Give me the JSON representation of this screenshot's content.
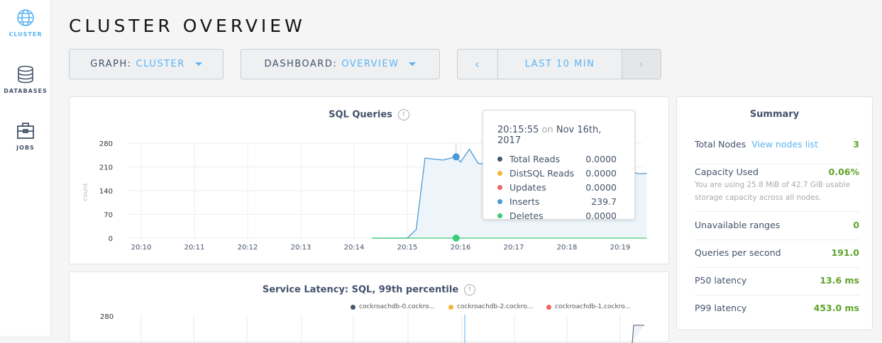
{
  "sidebar": {
    "items": [
      {
        "label": "CLUSTER",
        "icon": "globe-icon",
        "active": true
      },
      {
        "label": "DATABASES",
        "icon": "database-icon"
      },
      {
        "label": "JOBS",
        "icon": "briefcase-icon"
      }
    ]
  },
  "page_title": "CLUSTER OVERVIEW",
  "controls": {
    "graph_label": "GRAPH:",
    "graph_value": "CLUSTER",
    "dashboard_label": "DASHBOARD:",
    "dashboard_value": "OVERVIEW",
    "time_range": "LAST 10 MIN"
  },
  "sql_chart": {
    "title": "SQL Queries",
    "ylabel": "count",
    "yticks": [
      "280",
      "210",
      "140",
      "70",
      "0"
    ],
    "xticks": [
      "20:10",
      "20:11",
      "20:12",
      "20:13",
      "20:14",
      "20:15",
      "20:16",
      "20:17",
      "20:18",
      "20:19"
    ]
  },
  "chart_data": [
    {
      "type": "area",
      "title": "SQL Queries",
      "ylabel": "count",
      "ylim": [
        0,
        280
      ],
      "x": [
        "20:14:20",
        "20:14:40",
        "20:15:00",
        "20:15:10",
        "20:15:20",
        "20:15:40",
        "20:15:55",
        "20:16:00",
        "20:16:10",
        "20:16:20",
        "20:16:40",
        "20:17:00",
        "20:17:20",
        "20:17:40",
        "20:18:00",
        "20:18:20",
        "20:18:40",
        "20:19:00",
        "20:19:10",
        "20:19:20",
        "20:19:30"
      ],
      "series": [
        {
          "name": "Inserts",
          "color": "#4b9bd6",
          "values": [
            0,
            0,
            0,
            25,
            236,
            230,
            239.7,
            224,
            262,
            220,
            215,
            225,
            220,
            230,
            225,
            230,
            235,
            250,
            200,
            190,
            191
          ]
        },
        {
          "name": "Deletes",
          "color": "#3dcc78",
          "values": [
            0,
            0,
            0,
            0,
            0,
            0,
            0,
            0,
            0,
            0,
            0,
            0,
            0,
            0,
            0,
            0,
            0,
            0,
            0,
            0,
            0
          ]
        }
      ]
    },
    {
      "type": "line",
      "title": "Service Latency: SQL, 99th percentile",
      "yticks": [
        "280"
      ],
      "series": [
        {
          "name": "cockroachdb-0.cockro...",
          "color": "#475872"
        },
        {
          "name": "cockroachdb-2.cockro...",
          "color": "#f2b839"
        },
        {
          "name": "cockroachdb-1.cockro...",
          "color": "#ee6666"
        }
      ]
    }
  ],
  "tooltip": {
    "time": "20:15:55",
    "on": "on",
    "date": "Nov 16th, 2017",
    "rows": [
      {
        "name": "Total Reads",
        "value": "0.0000",
        "color": "#475872"
      },
      {
        "name": "DistSQL Reads",
        "value": "0.0000",
        "color": "#f2b839"
      },
      {
        "name": "Updates",
        "value": "0.0000",
        "color": "#ee6666"
      },
      {
        "name": "Inserts",
        "value": "239.7",
        "color": "#4b9bd6"
      },
      {
        "name": "Deletes",
        "value": "0.0000",
        "color": "#3dcc78"
      }
    ]
  },
  "latency_chart": {
    "title": "Service Latency: SQL, 99th percentile",
    "ytick": "280",
    "legend": [
      "cockroachdb-0.cockro...",
      "cockroachdb-2.cockro...",
      "cockroachdb-1.cockro..."
    ]
  },
  "summary": {
    "title": "Summary",
    "total_nodes_label": "Total Nodes",
    "view_nodes": "View nodes list",
    "total_nodes": "3",
    "capacity_label": "Capacity Used",
    "capacity": "0.06%",
    "capacity_note": "You are using 25.8 MiB of 42.7 GiB usable storage capacity across all nodes.",
    "unavailable_label": "Unavailable ranges",
    "unavailable": "0",
    "qps_label": "Queries per second",
    "qps": "191.0",
    "p50_label": "P50 latency",
    "p50": "13.6 ms",
    "p99_label": "P99 latency",
    "p99": "453.0 ms"
  }
}
